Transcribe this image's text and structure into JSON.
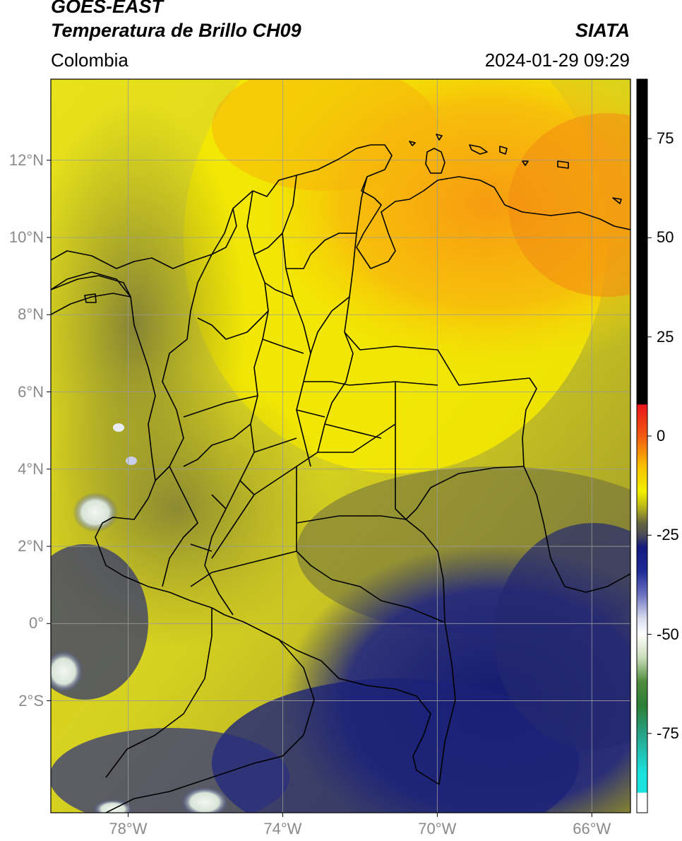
{
  "header": {
    "satellite": "GOES-EAST",
    "product": "Temperatura de Brillo CH09",
    "region": "Colombia",
    "organization": "SIATA",
    "datetime": "2024-01-29 09:29"
  },
  "map": {
    "lat_range": [
      -4.9,
      14.1
    ],
    "lon_range": [
      -80.0,
      -65.0
    ],
    "latitude_ticks": [
      {
        "value": 12,
        "label": "12°N"
      },
      {
        "value": 10,
        "label": "10°N"
      },
      {
        "value": 8,
        "label": "8°N"
      },
      {
        "value": 6,
        "label": "6°N"
      },
      {
        "value": 4,
        "label": "4°N"
      },
      {
        "value": 2,
        "label": "2°N"
      },
      {
        "value": 0,
        "label": "0°"
      },
      {
        "value": -2,
        "label": "2°S"
      }
    ],
    "longitude_ticks": [
      {
        "value": -78,
        "label": "78°W"
      },
      {
        "value": -74,
        "label": "74°W"
      },
      {
        "value": -70,
        "label": "70°W"
      },
      {
        "value": -66,
        "label": "66°W"
      }
    ],
    "grid": true,
    "colors": {
      "warm_orange": "#f7a10c",
      "yellow": "#f4ee00",
      "olive": "#8c8b2c",
      "gray_olive": "#5f6140",
      "dark_blue": "#1b1f78",
      "white_cloud": "#f2f5f5",
      "borders": "#000000",
      "grid": "#9a9a9a"
    }
  },
  "colorbar": {
    "range": [
      -95,
      90
    ],
    "ticks": [
      {
        "value": 75,
        "label": "75"
      },
      {
        "value": 50,
        "label": "50"
      },
      {
        "value": 25,
        "label": "25"
      },
      {
        "value": 0,
        "label": "0"
      },
      {
        "value": -25,
        "label": "-25"
      },
      {
        "value": -50,
        "label": "-50"
      },
      {
        "value": -75,
        "label": "-75"
      }
    ],
    "stops": [
      {
        "value": 90,
        "color": "#000000"
      },
      {
        "value": 8,
        "color": "#000000"
      },
      {
        "value": 7.9,
        "color": "#e8141b"
      },
      {
        "value": 0,
        "color": "#f25a10"
      },
      {
        "value": -8,
        "color": "#f8c400"
      },
      {
        "value": -14,
        "color": "#f2ef00"
      },
      {
        "value": -18,
        "color": "#b8b419"
      },
      {
        "value": -22,
        "color": "#666640"
      },
      {
        "value": -25,
        "color": "#4a4a58"
      },
      {
        "value": -28,
        "color": "#141a7e"
      },
      {
        "value": -34,
        "color": "#1e2a96"
      },
      {
        "value": -40,
        "color": "#6a72c0"
      },
      {
        "value": -46,
        "color": "#d8dcee"
      },
      {
        "value": -50,
        "color": "#ffffff"
      },
      {
        "value": -56,
        "color": "#c8dcb8"
      },
      {
        "value": -62,
        "color": "#4f8c3c"
      },
      {
        "value": -68,
        "color": "#2b7f35"
      },
      {
        "value": -76,
        "color": "#26a890"
      },
      {
        "value": -85,
        "color": "#1be2dd"
      },
      {
        "value": -89.9,
        "color": "#1be2dd"
      },
      {
        "value": -90,
        "color": "#ffffff"
      },
      {
        "value": -95,
        "color": "#ffffff"
      }
    ]
  }
}
